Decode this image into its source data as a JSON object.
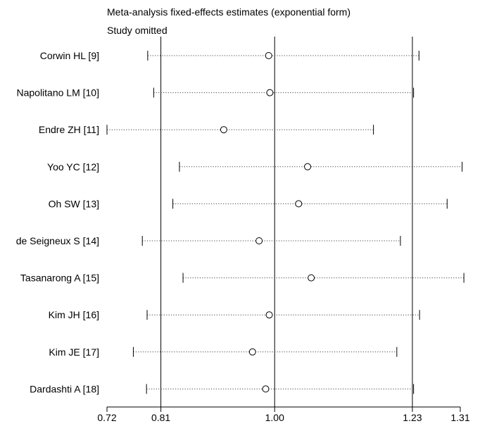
{
  "chart_data": {
    "type": "scatter",
    "title": "Meta-analysis fixed-effects estimates (exponential form)",
    "subtitle": "Study omitted",
    "x_ticks": [
      0.72,
      0.81,
      1.0,
      1.23,
      1.31
    ],
    "x_tick_labels": [
      "0.72",
      "0.81",
      "1.00",
      "1.23",
      "1.31"
    ],
    "reference_lines": [
      0.81,
      1.0,
      1.23
    ],
    "xlim": [
      0.72,
      1.31
    ],
    "studies": [
      {
        "label": "Corwin HL [9]",
        "estimate": 0.99,
        "lower": 0.788,
        "upper": 1.241
      },
      {
        "label": "Napolitano LM [10]",
        "estimate": 0.992,
        "lower": 0.798,
        "upper": 1.232
      },
      {
        "label": "Endre ZH [11]",
        "estimate": 0.915,
        "lower": 0.72,
        "upper": 1.165
      },
      {
        "label": "Yoo YC [12]",
        "estimate": 1.055,
        "lower": 0.841,
        "upper": 1.313
      },
      {
        "label": "Oh SW [13]",
        "estimate": 1.04,
        "lower": 0.83,
        "upper": 1.288
      },
      {
        "label": "de Seigneux S [14]",
        "estimate": 0.974,
        "lower": 0.779,
        "upper": 1.21
      },
      {
        "label": "Tasanarong A [15]",
        "estimate": 1.061,
        "lower": 0.847,
        "upper": 1.316
      },
      {
        "label": "Kim JH [16]",
        "estimate": 0.991,
        "lower": 0.787,
        "upper": 1.242
      },
      {
        "label": "Kim JE [17]",
        "estimate": 0.963,
        "lower": 0.764,
        "upper": 1.204
      },
      {
        "label": "Dardashti A [18]",
        "estimate": 0.985,
        "lower": 0.786,
        "upper": 1.232
      }
    ]
  }
}
